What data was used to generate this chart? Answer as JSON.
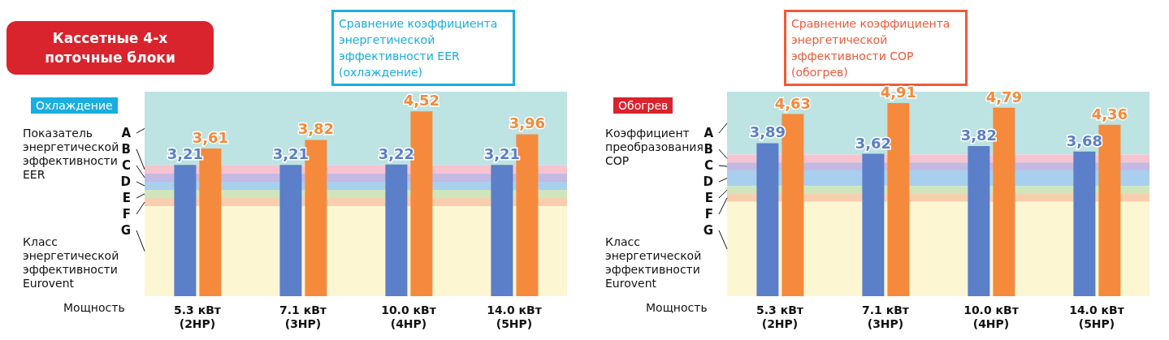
{
  "chart_data": [
    {
      "type": "bar",
      "title": "Кассетные 4-х поточные блоки",
      "subtitle": "Сравнение коэффициента энергетической эффективности EER (охлаждение)",
      "xlabel": "Мощность",
      "ylabel": "Показатель энергетической эффективности EER",
      "annotations": [
        "Охлаждение",
        "Класс энергетической эффективности Eurovent"
      ],
      "categories": [
        "5.3 кВт\n(2HP)",
        "7.1 кВт\n(3HP)",
        "10.0 кВт\n(4HP)",
        "14.0 кВт\n(5HP)"
      ],
      "series": [
        {
          "color": "#5b7fc8",
          "values": [
            3.21,
            3.21,
            3.22,
            3.21
          ],
          "value_labels": [
            "3,21",
            "3,21",
            "3,22",
            "3,21"
          ]
        },
        {
          "color": "#f58a3c",
          "values": [
            3.61,
            3.82,
            4.52,
            3.96
          ],
          "value_labels": [
            "3,61",
            "3,82",
            "4,52",
            "3,96"
          ]
        }
      ],
      "ylim": [
        0,
        5
      ],
      "tick_labels": "x",
      "bands": [
        {
          "axis": "y",
          "from": 3.2,
          "to": 5,
          "label": "A",
          "color": "#bde3e2"
        },
        {
          "axis": "y",
          "from": 3.0,
          "to": 3.2,
          "label": "B",
          "color": "#f6c3cf"
        },
        {
          "axis": "y",
          "from": 2.8,
          "to": 3.0,
          "label": "C",
          "color": "#c3b9e3"
        },
        {
          "axis": "y",
          "from": 2.6,
          "to": 2.8,
          "label": "D",
          "color": "#a8d0ee"
        },
        {
          "axis": "y",
          "from": 2.4,
          "to": 2.6,
          "label": "E",
          "color": "#cfe6bd"
        },
        {
          "axis": "y",
          "from": 2.2,
          "to": 2.4,
          "label": "F",
          "color": "#f8cfae"
        },
        {
          "axis": "y",
          "from": 0,
          "to": 2.2,
          "label": "G",
          "color": "#fdf6d3"
        }
      ]
    },
    {
      "type": "bar",
      "subtitle": "Сравнение коэффициента энергетической эффективности COP (обогрев)",
      "xlabel": "Мощность",
      "ylabel": "Коэффициент преобразования COP",
      "annotations": [
        "Обогрев",
        "Класс энергетической эффективности Eurovent"
      ],
      "categories": [
        "5.3 кВт\n(2HP)",
        "7.1 кВт\n(3HP)",
        "10.0 кВт\n(4HP)",
        "14.0 кВт\n(5HP)"
      ],
      "series": [
        {
          "color": "#5b7fc8",
          "values": [
            3.89,
            3.62,
            3.82,
            3.68
          ],
          "value_labels": [
            "3,89",
            "3,62",
            "3,82",
            "3,68"
          ]
        },
        {
          "color": "#f58a3c",
          "values": [
            4.63,
            4.91,
            4.79,
            4.36
          ],
          "value_labels": [
            "4,63",
            "4,91",
            "4,79",
            "4,36"
          ]
        }
      ],
      "ylim": [
        0,
        5.2
      ],
      "tick_labels": "x",
      "bands": [
        {
          "axis": "y",
          "from": 3.6,
          "to": 5.2,
          "label": "A",
          "color": "#bde3e2"
        },
        {
          "axis": "y",
          "from": 3.4,
          "to": 3.6,
          "label": "B",
          "color": "#f6c3cf"
        },
        {
          "axis": "y",
          "from": 3.2,
          "to": 3.4,
          "label": "C",
          "color": "#c3b9e3"
        },
        {
          "axis": "y",
          "from": 2.8,
          "to": 3.2,
          "label": "D",
          "color": "#a8d0ee"
        },
        {
          "axis": "y",
          "from": 2.6,
          "to": 2.8,
          "label": "E",
          "color": "#cfe6bd"
        },
        {
          "axis": "y",
          "from": 2.4,
          "to": 2.6,
          "label": "F",
          "color": "#f8cfae"
        },
        {
          "axis": "y",
          "from": 0,
          "to": 2.4,
          "label": "G",
          "color": "#fdf6d3"
        }
      ]
    }
  ]
}
